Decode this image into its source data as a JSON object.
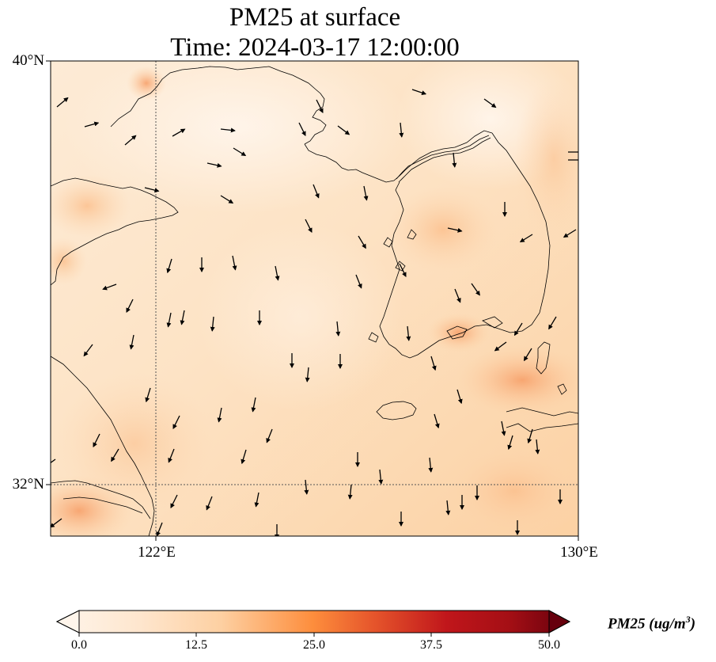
{
  "title": {
    "line1": "PM25 at surface",
    "line2": "Time: 2024-03-17 12:00:00"
  },
  "map": {
    "lat_labels": [
      "40°N",
      "32°N"
    ],
    "lon_labels": [
      "122°E",
      "130°E"
    ],
    "lon_range": [
      120,
      130
    ],
    "lat_range": [
      31,
      40
    ],
    "gridline_lon": 122,
    "gridline_lat": 32
  },
  "colorbar": {
    "label": "PM25 (ug/m",
    "label_sup": "3",
    "label_close": ")",
    "ticks": [
      "0.0",
      "12.5",
      "25.0",
      "37.5",
      "50.0"
    ],
    "min": 0,
    "max": 50,
    "colors": [
      "#fff5eb",
      "#fdd8b2",
      "#fdae6b",
      "#f16913",
      "#d94801",
      "#a50f15",
      "#67000d"
    ]
  }
}
